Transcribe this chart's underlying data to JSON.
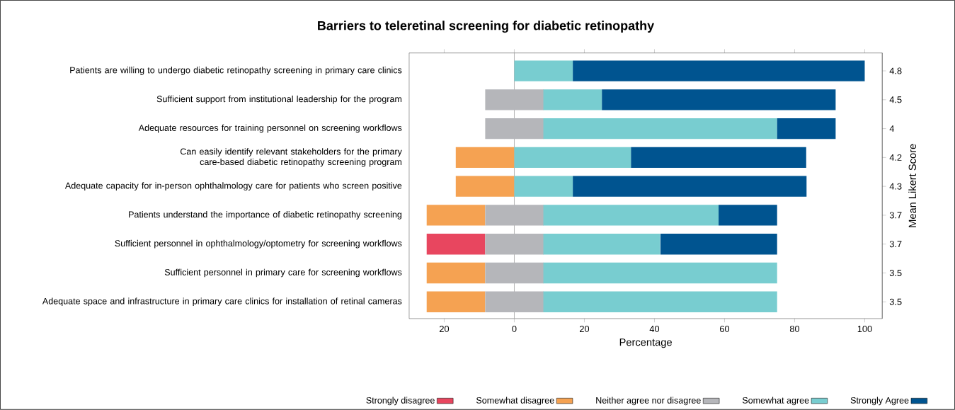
{
  "chart_data": {
    "type": "bar",
    "orientation": "horizontal",
    "title": "Barriers to teleretinal screening for diabetic retinopathy",
    "xlabel": "Percentage",
    "y2label": "Mean Likert Score",
    "categories": [
      "Patients are willing to undergo diabetic retinopathy screening in primary care clinics",
      "Sufficient support from institutional leadership for the program",
      "Adequate resources for training personnel on screening workflows",
      "Can easily identify relevant stakeholders for the primary care-based diabetic retinopathy screening program",
      "Adequate capacity for in-person ophthalmology care for patients who screen positive",
      "Patients understand the importance of diabetic retinopathy screening",
      "Sufficient personnel in ophthalmology/optometry for screening workflows",
      "Sufficient personnel in primary care for screening workflows",
      "Adequate space and infrastructure in primary care clinics for installation of retinal cameras"
    ],
    "y2_categories": [
      "4.8",
      "4.5",
      "4",
      "4.2",
      "4.3",
      "3.7",
      "3.7",
      "3.5",
      "3.5"
    ],
    "series": [
      {
        "name": "Strongly disagree",
        "color": "#e8465f",
        "base": [
          null,
          null,
          null,
          null,
          null,
          null,
          -25,
          null,
          null
        ],
        "values": [
          null,
          null,
          null,
          null,
          null,
          null,
          16.7,
          null,
          null
        ]
      },
      {
        "name": "Somewhat disagree",
        "color": "#f5a252",
        "base": [
          null,
          null,
          null,
          -16.7,
          -16.7,
          -25,
          null,
          -25,
          -25
        ],
        "values": [
          null,
          null,
          null,
          16.7,
          16.7,
          16.7,
          null,
          16.7,
          16.7
        ]
      },
      {
        "name": "Neither agree nor disagree",
        "color": "#b5b6ba",
        "base": [
          null,
          -8.3,
          -8.3,
          null,
          null,
          -8.3,
          -8.3,
          -8.3,
          -8.3
        ],
        "values": [
          null,
          16.7,
          16.7,
          null,
          null,
          16.7,
          16.7,
          16.7,
          16.7
        ]
      },
      {
        "name": "Somewhat agree",
        "color": "#78cdd0",
        "base": [
          0,
          8.3,
          8.3,
          0,
          0,
          8.3,
          8.3,
          8.3,
          8.3
        ],
        "values": [
          16.7,
          16.7,
          66.7,
          33.3,
          16.7,
          50,
          33.3,
          66.7,
          66.7
        ]
      },
      {
        "name": "Strongly Agree",
        "color": "#005490",
        "base": [
          16.7,
          25,
          75,
          33.3,
          16.7,
          58.3,
          41.7,
          null,
          null
        ],
        "values": [
          83.3,
          66.7,
          16.7,
          50,
          66.7,
          16.7,
          33.3,
          null,
          null
        ]
      }
    ],
    "xlim": [
      -30,
      105
    ],
    "xticks": [
      {
        "value": -20,
        "label": "20"
      },
      0,
      20,
      40,
      60,
      80,
      100
    ],
    "ref_lines": [
      {
        "axis": "x",
        "value": 0,
        "color": "#a0a0a0"
      }
    ],
    "legend": "bottom"
  }
}
